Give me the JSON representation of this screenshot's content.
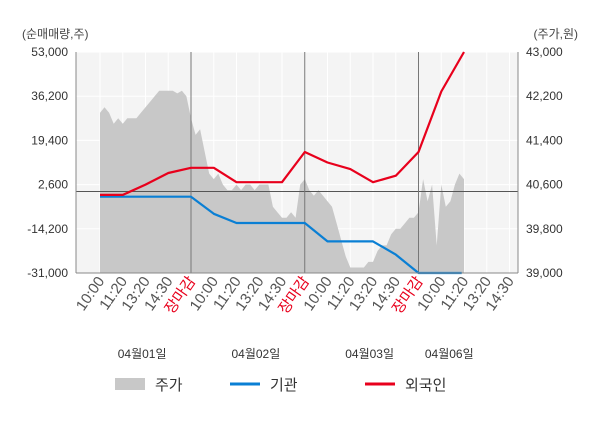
{
  "chart_data": {
    "type": "line",
    "left_unit": "(순매매량,주)",
    "right_unit": "(주가,원)",
    "left_axis": {
      "min": -31000,
      "max": 53000,
      "ticks": [
        "53,000",
        "36,200",
        "19,400",
        "2,600",
        "-14,200",
        "-31,000"
      ],
      "tick_values": [
        53000,
        36200,
        19400,
        2600,
        -14200,
        -31000
      ]
    },
    "right_axis": {
      "min": 39000,
      "max": 43000,
      "ticks": [
        "43,000",
        "42,200",
        "41,400",
        "40,600",
        "39,800",
        "39,000"
      ],
      "tick_values": [
        43000,
        42200,
        41400,
        40600,
        39800,
        39000
      ]
    },
    "x_labels": [
      {
        "text": "10:00",
        "special": false
      },
      {
        "text": "11:20",
        "special": false
      },
      {
        "text": "13:20",
        "special": false
      },
      {
        "text": "14:30",
        "special": false
      },
      {
        "text": "장마감",
        "special": true
      },
      {
        "text": "10:00",
        "special": false
      },
      {
        "text": "11:20",
        "special": false
      },
      {
        "text": "13:20",
        "special": false
      },
      {
        "text": "14:30",
        "special": false
      },
      {
        "text": "장마감",
        "special": true
      },
      {
        "text": "10:00",
        "special": false
      },
      {
        "text": "11:20",
        "special": false
      },
      {
        "text": "13:20",
        "special": false
      },
      {
        "text": "14:30",
        "special": false
      },
      {
        "text": "장마감",
        "special": true
      },
      {
        "text": "10:00",
        "special": false
      },
      {
        "text": "11:20",
        "special": false
      },
      {
        "text": "13:20",
        "special": false
      },
      {
        "text": "14:30",
        "special": false
      }
    ],
    "dates": [
      {
        "text": "04월01일",
        "index": 1.5
      },
      {
        "text": "04월02일",
        "index": 6.5
      },
      {
        "text": "04월03일",
        "index": 11.5
      },
      {
        "text": "04월06일",
        "index": 15
      }
    ],
    "series": [
      {
        "name": "주가",
        "type": "area",
        "axis": "right",
        "color": "#c8c8c8",
        "x": [
          0,
          0.2,
          0.4,
          0.6,
          0.8,
          1.0,
          1.2,
          1.4,
          1.6,
          1.8,
          2.0,
          2.2,
          2.4,
          2.6,
          2.8,
          3.0,
          3.2,
          3.4,
          3.6,
          3.8,
          4.0,
          4.2,
          4.4,
          4.6,
          4.8,
          5.0,
          5.2,
          5.4,
          5.6,
          5.8,
          6.0,
          6.2,
          6.4,
          6.6,
          6.8,
          7.0,
          7.2,
          7.4,
          7.6,
          7.8,
          8.0,
          8.2,
          8.4,
          8.6,
          8.8,
          9.0,
          9.2,
          9.4,
          9.6,
          9.8,
          10.0,
          10.2,
          10.4,
          10.6,
          10.8,
          11.0,
          11.2,
          11.4,
          11.6,
          11.8,
          12.0,
          12.2,
          12.4,
          12.6,
          12.8,
          13.0,
          13.2,
          13.4,
          13.6,
          13.8,
          14.0,
          14.2,
          14.4,
          14.6,
          14.8,
          15.0,
          15.2,
          15.4,
          15.6,
          15.8,
          16.0
        ],
        "values": [
          41900,
          42000,
          41900,
          41700,
          41800,
          41700,
          41800,
          41800,
          41800,
          41900,
          42000,
          42100,
          42200,
          42300,
          42300,
          42300,
          42300,
          42250,
          42300,
          42200,
          41800,
          41500,
          41600,
          41200,
          40800,
          40700,
          40800,
          40600,
          40500,
          40500,
          40600,
          40500,
          40600,
          40600,
          40500,
          40600,
          40600,
          40600,
          40200,
          40100,
          40000,
          40000,
          40100,
          40000,
          40600,
          40700,
          40500,
          40400,
          40500,
          40400,
          40300,
          40200,
          39900,
          39600,
          39300,
          39100,
          39100,
          39100,
          39100,
          39200,
          39200,
          39400,
          39500,
          39500,
          39700,
          39800,
          39800,
          39900,
          40000,
          40000,
          40100,
          40700,
          40300,
          40600,
          39500,
          40600,
          40200,
          40300,
          40600,
          40800,
          40700
        ]
      },
      {
        "name": "기관",
        "type": "line",
        "axis": "left",
        "color": "#0a7fd4",
        "x": [
          0,
          1,
          2,
          3,
          4,
          5,
          6,
          7,
          8,
          9,
          10,
          11,
          12,
          13,
          14,
          15,
          15.9
        ],
        "values": [
          -2000,
          -2000,
          -2000,
          -2000,
          -2000,
          -8500,
          -12000,
          -12000,
          -12000,
          -12000,
          -19000,
          -19000,
          -19000,
          -24000,
          -31000,
          -31000,
          -31000
        ],
        "values_note": "institutional net buy (shares)"
      },
      {
        "name": "외국인",
        "type": "line",
        "axis": "left",
        "color": "#e8001c",
        "x": [
          0,
          1,
          2,
          3,
          4,
          5,
          6,
          7,
          8,
          9,
          10,
          11,
          12,
          13,
          14,
          15,
          16
        ],
        "values": [
          -1300,
          -1300,
          2600,
          7000,
          9000,
          9000,
          3500,
          3500,
          3500,
          15000,
          11000,
          8500,
          3500,
          6000,
          15000,
          38000,
          53000
        ]
      }
    ],
    "legend": [
      {
        "label": "주가",
        "color": "#c8c8c8",
        "kind": "area"
      },
      {
        "label": "기관",
        "color": "#0a7fd4",
        "kind": "line"
      },
      {
        "label": "외국인",
        "color": "#e8001c",
        "kind": "line"
      }
    ],
    "grid": true
  }
}
